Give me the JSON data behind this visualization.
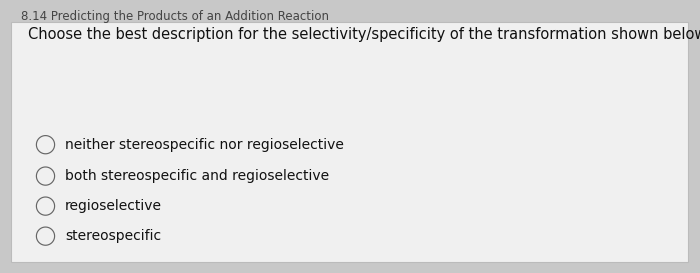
{
  "header_text": "8.14 Predicting the Products of an Addition Reaction",
  "header_fontsize": 8.5,
  "header_color": "#444444",
  "card_bg": "#f0f0f0",
  "card_edge": "#bbbbbb",
  "question_text": "Choose the best description for the selectivity/specificity of the transformation shown below:",
  "question_fontsize": 10.5,
  "question_color": "#111111",
  "options": [
    "neither stereospecific nor regioselective",
    "both stereospecific and regioselective",
    "regioselective",
    "stereospecific"
  ],
  "option_fontsize": 10,
  "option_color": "#111111",
  "fig_bg": "#c8c8c8",
  "line_color": "#555555",
  "lw": 1.3
}
